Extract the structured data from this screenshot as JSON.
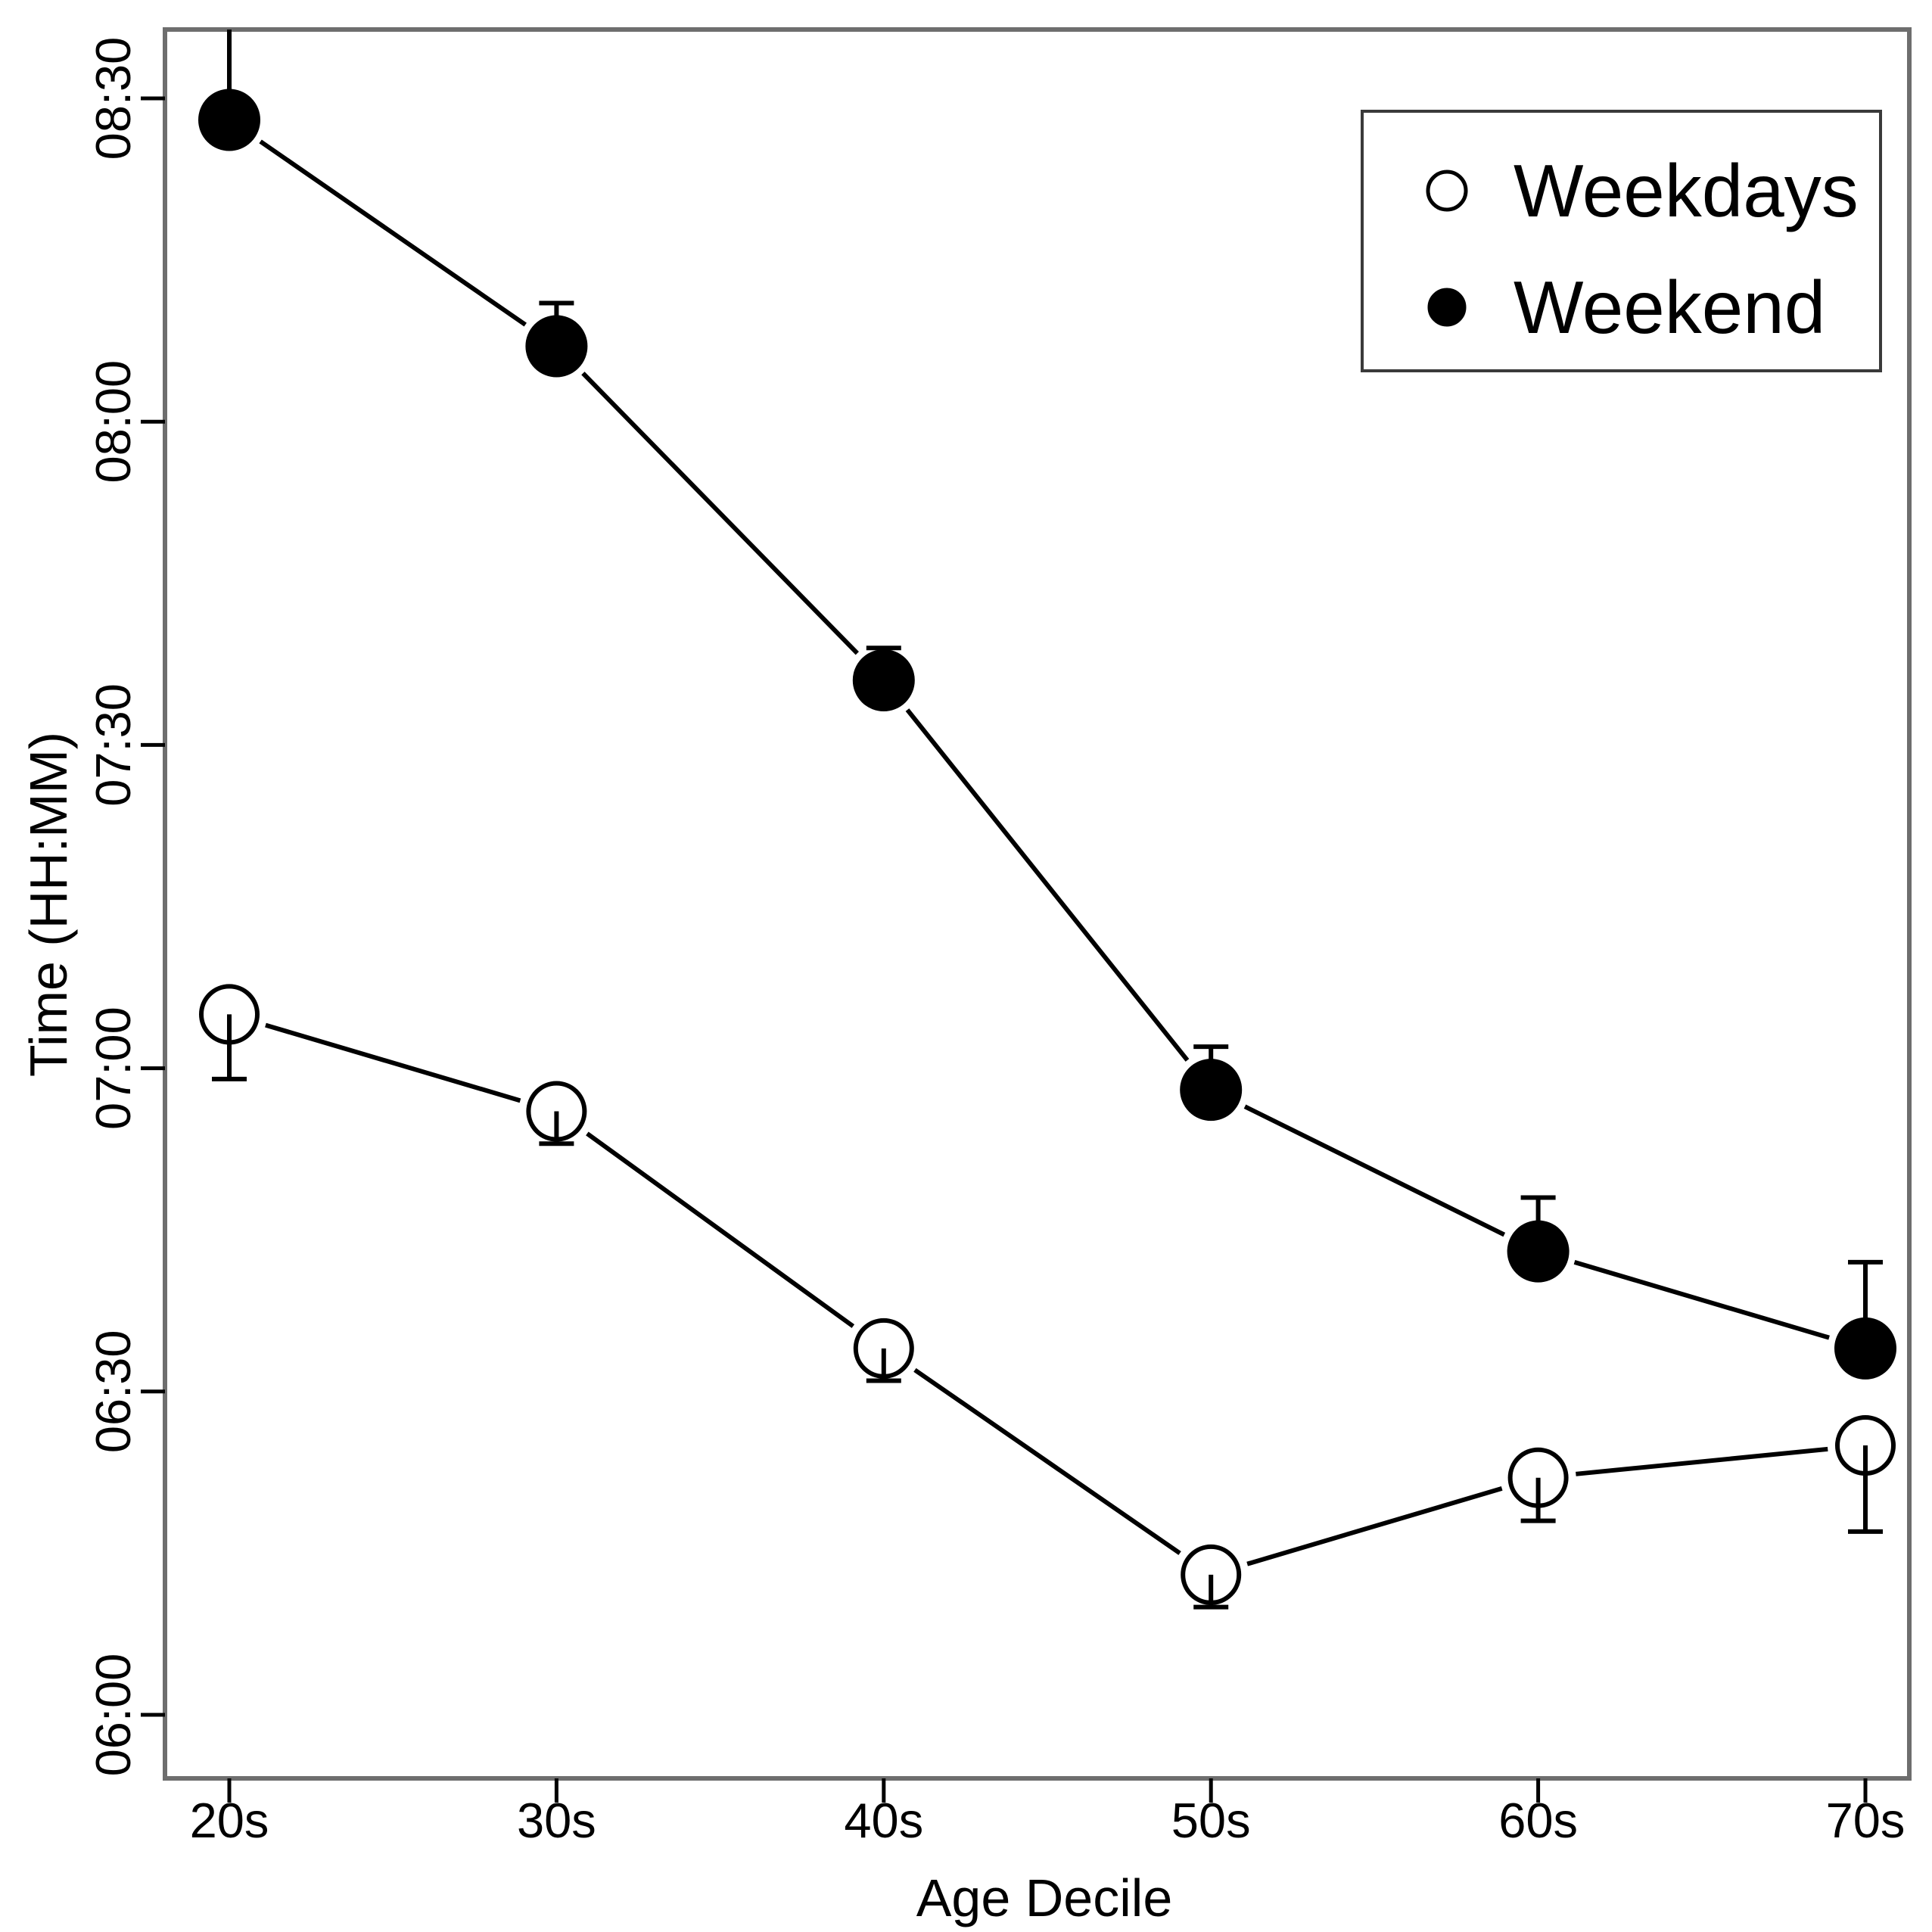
{
  "chart_data": {
    "type": "line",
    "title": "",
    "xlabel": "Age Decile",
    "ylabel": "Time (HH:MM)",
    "categories": [
      "20s",
      "30s",
      "40s",
      "50s",
      "60s",
      "70s"
    ],
    "y_tick_labels": [
      "06:00",
      "06:30",
      "07:00",
      "07:30",
      "08:00",
      "08:30"
    ],
    "ylim": [
      "05:54",
      "08:36"
    ],
    "grid": false,
    "legend_position": "top-right",
    "legend_entries": [
      "Weekdays",
      "Weekend"
    ],
    "series": [
      {
        "name": "Weekdays",
        "marker": "open-circle",
        "color": "#000000",
        "values": [
          "07:05",
          "06:56",
          "06:34",
          "06:13",
          "06:22",
          "06:25"
        ],
        "error_low": [
          "06:59",
          "06:53",
          "06:31",
          "06:10",
          "06:18",
          "06:17"
        ],
        "error_high": [
          null,
          null,
          null,
          null,
          null,
          null
        ]
      },
      {
        "name": "Weekend",
        "marker": "filled-circle",
        "color": "#000000",
        "values": [
          "08:28",
          "08:07",
          "07:36",
          "06:58",
          "06:43",
          "06:34"
        ],
        "error_low": [
          null,
          null,
          null,
          null,
          null,
          null
        ],
        "error_high": [
          "08:37",
          "08:11",
          "07:39",
          "07:02",
          "06:48",
          "06:42"
        ]
      }
    ]
  },
  "colors": {
    "background": "#ffffff",
    "frame": "#6e6e6e",
    "ink": "#000000",
    "legend_border": "#3a3a3a"
  }
}
